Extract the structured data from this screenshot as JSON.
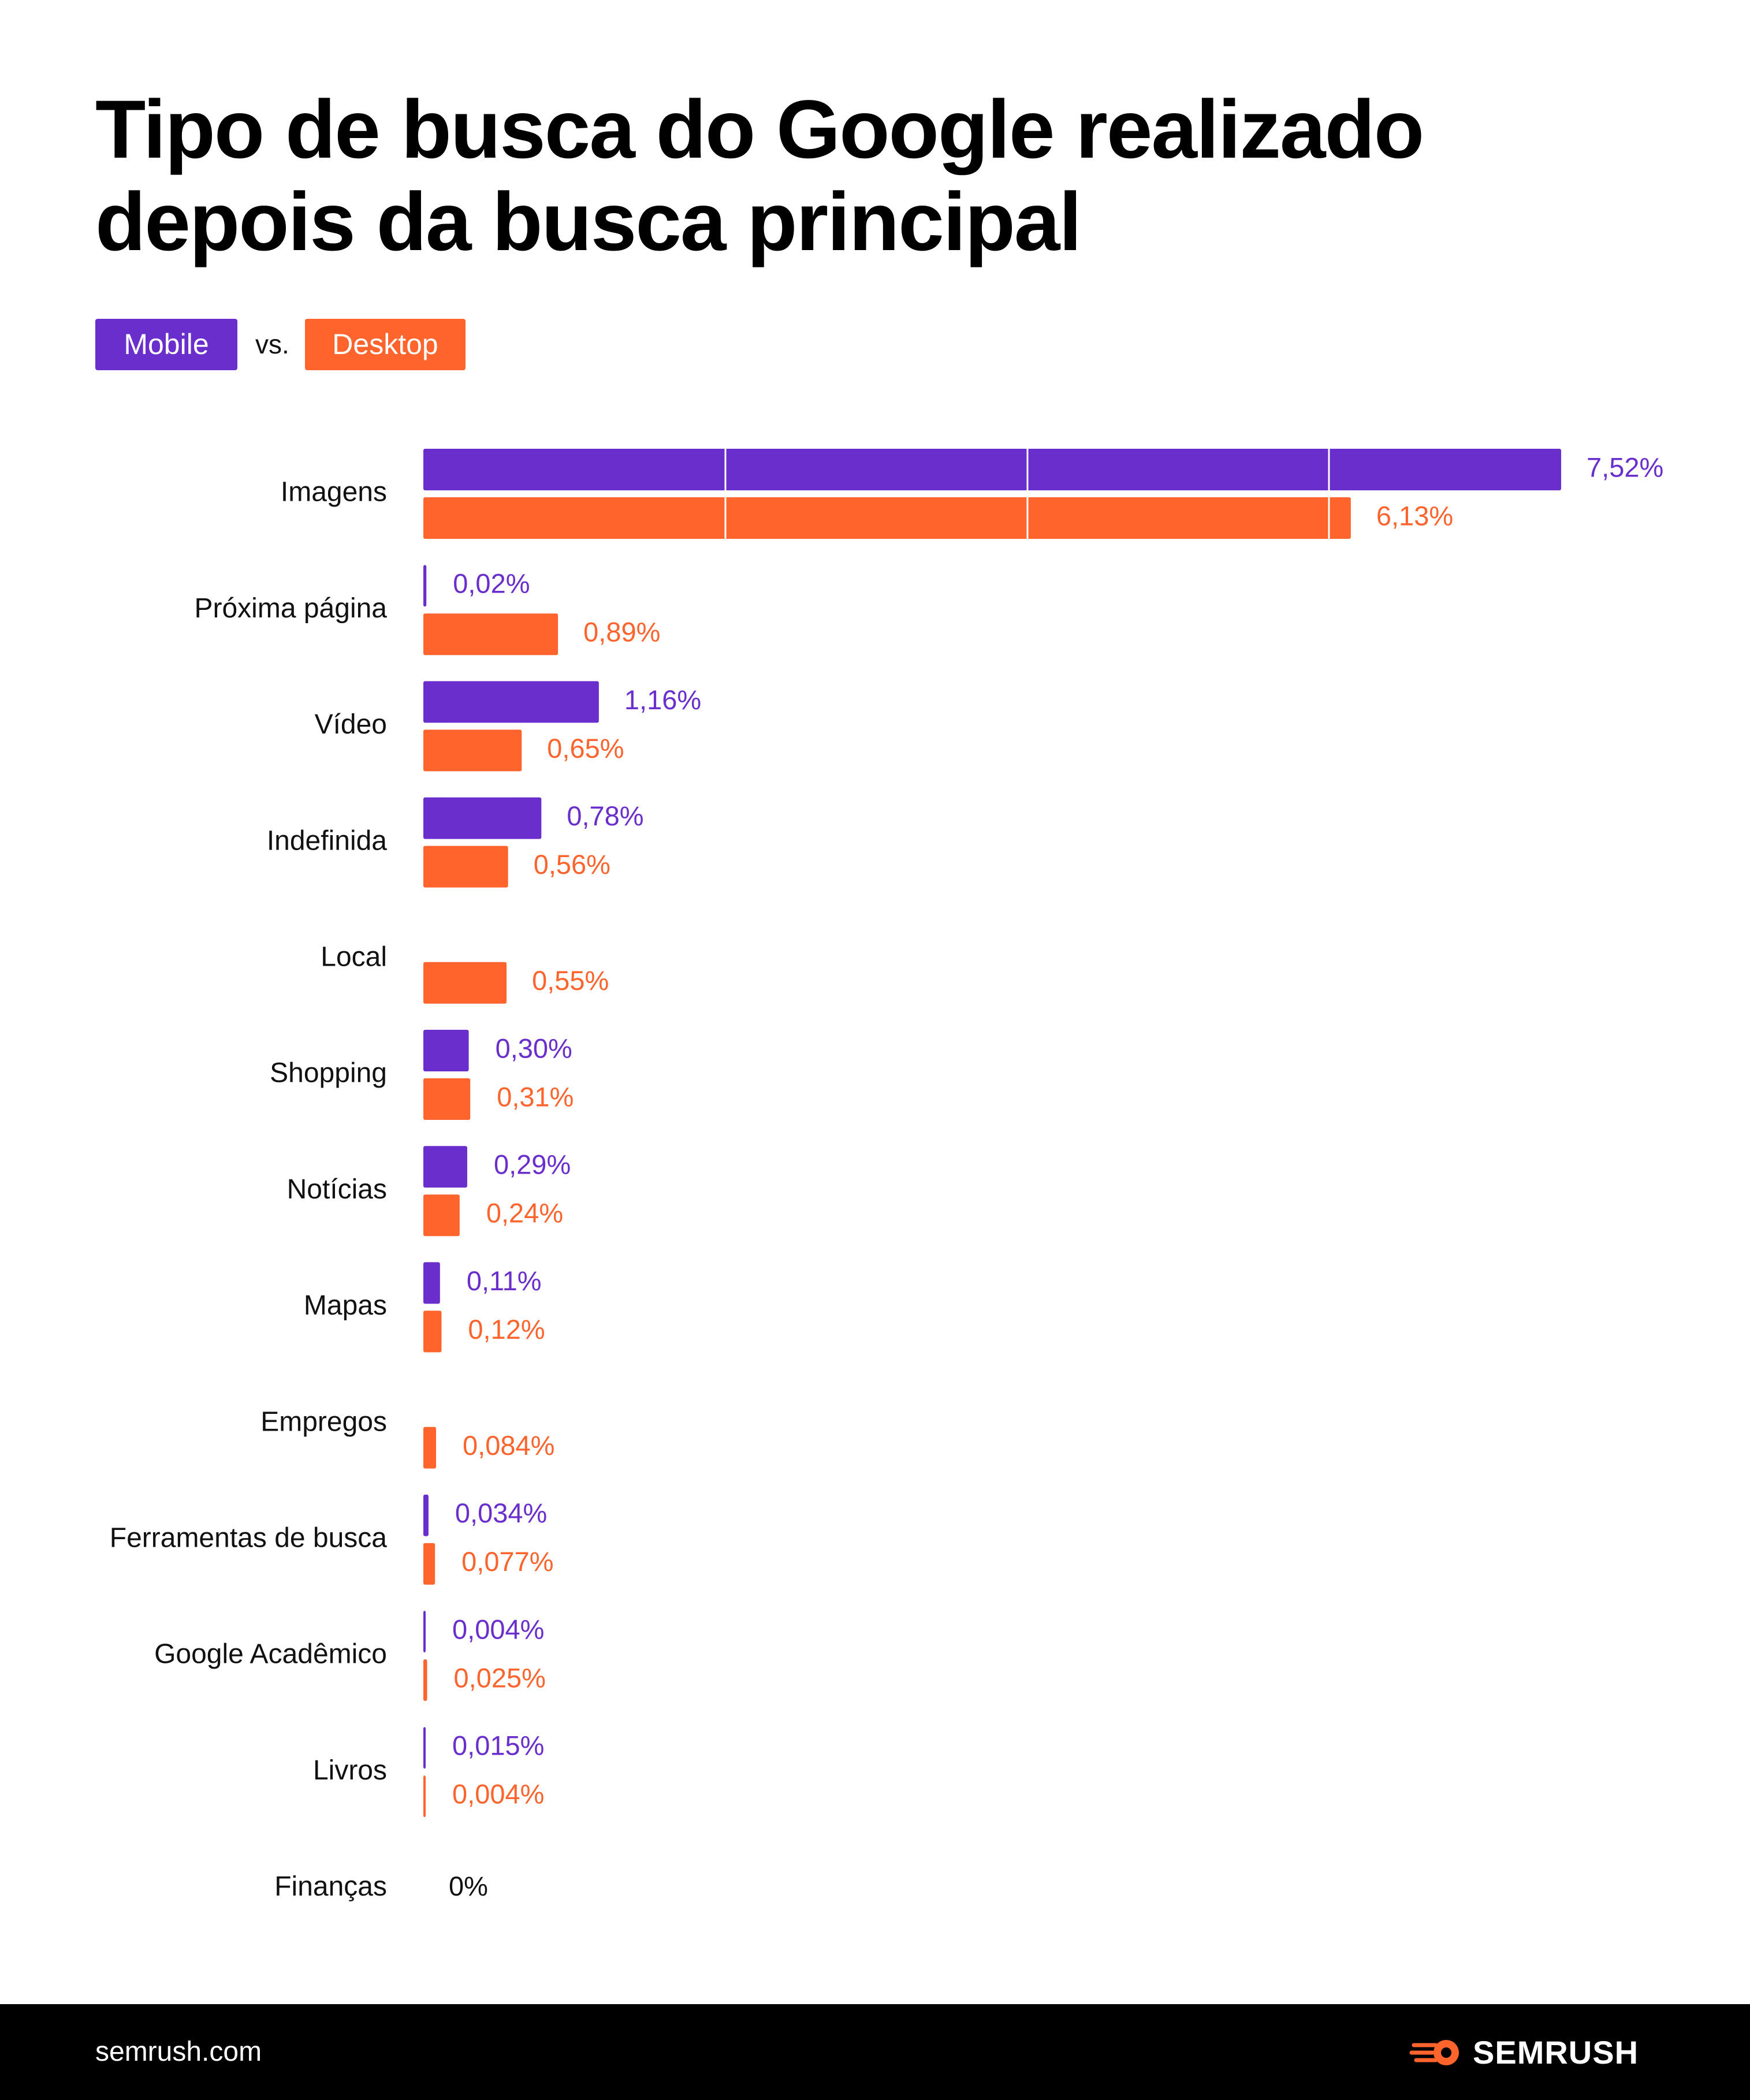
{
  "title": "Tipo de busca do Google realizado depois da busca principal",
  "legend": {
    "mobile_label": "Mobile",
    "vs_label": "vs.",
    "desktop_label": "Desktop"
  },
  "colors": {
    "mobile": "#6A2ECC",
    "desktop": "#FF642D",
    "text": "#000000",
    "footer_background": "#000000"
  },
  "chart_data": {
    "type": "bar",
    "orientation": "horizontal",
    "title": "Tipo de busca do Google realizado depois da busca principal",
    "xlabel": "",
    "ylabel": "",
    "unit": "%",
    "xlim": [
      0,
      7.52
    ],
    "grid": false,
    "legend_position": "top-left",
    "categories": [
      "Imagens",
      "Próxima página",
      "Vídeo",
      "Indefinida",
      "Local",
      "Shopping",
      "Notícias",
      "Mapas",
      "Empregos",
      "Ferramentas de busca",
      "Google Acadêmico",
      "Livros",
      "Finanças"
    ],
    "series": [
      {
        "name": "Mobile",
        "color": "#6A2ECC",
        "values": [
          7.52,
          0.02,
          1.16,
          0.78,
          null,
          0.3,
          0.29,
          0.11,
          null,
          0.034,
          0.004,
          0.015,
          null
        ],
        "labels": [
          "7,52%",
          "0,02%",
          "1,16%",
          "0,78%",
          "",
          "0,30%",
          "0,29%",
          "0,11%",
          "",
          "0,034%",
          "0,004%",
          "0,015%",
          ""
        ]
      },
      {
        "name": "Desktop",
        "color": "#FF642D",
        "values": [
          6.13,
          0.89,
          0.65,
          0.56,
          0.55,
          0.31,
          0.24,
          0.12,
          0.084,
          0.077,
          0.025,
          0.004,
          null
        ],
        "labels": [
          "6,13%",
          "0,89%",
          "0,65%",
          "0,56%",
          "0,55%",
          "0,31%",
          "0,24%",
          "0,12%",
          "0,084%",
          "0,077%",
          "0,025%",
          "0,004%",
          ""
        ]
      }
    ],
    "annotations": [
      {
        "category": "Finanças",
        "text": "0%"
      }
    ]
  },
  "footer": {
    "url": "semrush.com",
    "brand_name": "SEMRUSH"
  }
}
